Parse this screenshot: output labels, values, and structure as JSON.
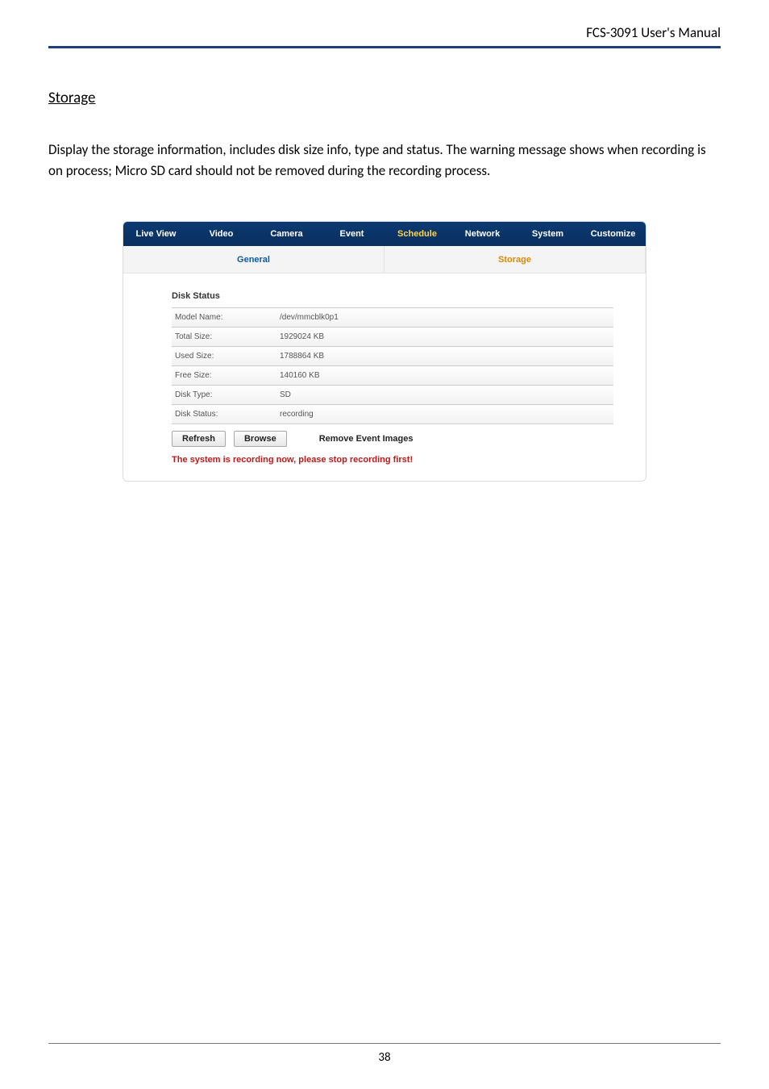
{
  "doc": {
    "header_text": "FCS-3091 User's Manual",
    "section_title": "Storage",
    "body_para": "Display the storage information, includes disk size info, type and status. The warning message shows when recording is on process; Micro SD card should not be removed during the recording process.",
    "page_number": "38"
  },
  "nav": {
    "items": [
      "Live View",
      "Video",
      "Camera",
      "Event",
      "Schedule",
      "Network",
      "System",
      "Customize"
    ],
    "active_index": 4
  },
  "subtabs": {
    "general": "General",
    "storage": "Storage",
    "active": "storage"
  },
  "panel": {
    "title": "Disk Status",
    "rows": [
      {
        "label": "Model Name:",
        "value": "/dev/mmcblk0p1"
      },
      {
        "label": "Total Size:",
        "value": "1929024 KB"
      },
      {
        "label": "Used Size:",
        "value": "1788864 KB"
      },
      {
        "label": "Free Size:",
        "value": "140160 KB"
      },
      {
        "label": "Disk Type:",
        "value": "SD"
      },
      {
        "label": "Disk Status:",
        "value": "recording"
      }
    ],
    "buttons": {
      "refresh": "Refresh",
      "browse": "Browse",
      "remove": "Remove Event Images"
    },
    "warning": "The system is recording now, please stop recording first!"
  },
  "colors": {
    "header_rule": "#1f3f7a",
    "nav_bg_top": "#0b3a73",
    "nav_bg_bottom": "#0a2f5e",
    "nav_active": "#ffd54a",
    "subtab_text": "#0b5aa3",
    "subtab_active": "#d88b00",
    "warning": "#c01818",
    "row_border": "#d0d0d0"
  }
}
